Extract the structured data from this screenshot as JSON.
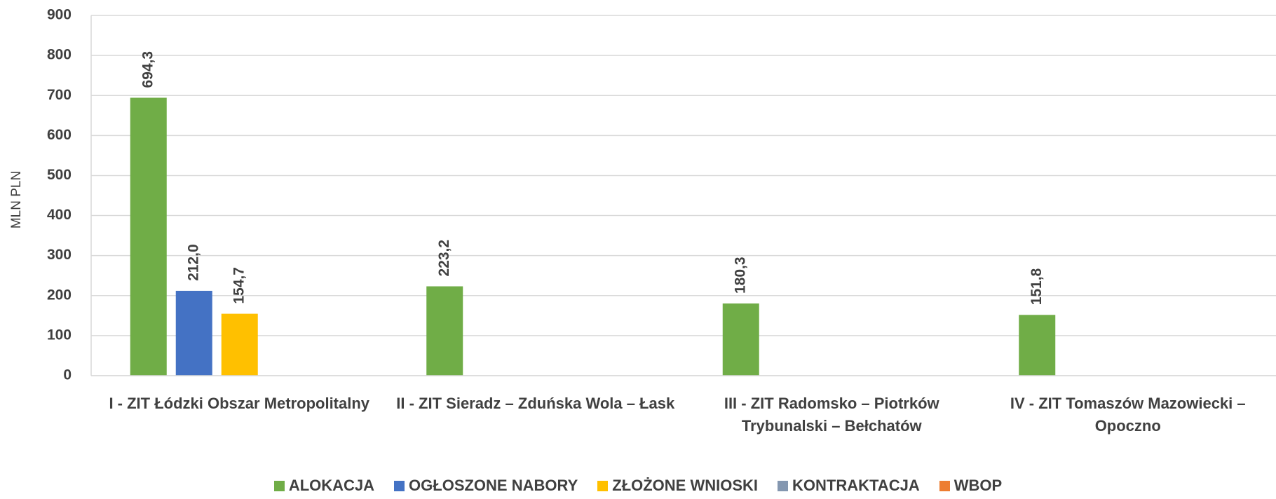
{
  "chart_data": {
    "type": "bar",
    "y_label": "MLN PLN",
    "categories": [
      "I - ZIT Łódzki Obszar Metropolitalny",
      "II - ZIT Sieradz – Zduńska Wola – Łask",
      "III - ZIT Radomsko – Piotrków Trybunalski – Bełchatów",
      "IV - ZIT Tomaszów Mazowiecki – Opoczno"
    ],
    "series": [
      {
        "name": "ALOKACJA",
        "color": "#70ad47",
        "values": [
          694.3,
          223.2,
          180.3,
          151.8
        ],
        "value_labels": [
          "694,3",
          "223,2",
          "180,3",
          "151,8"
        ]
      },
      {
        "name": "OGŁOSZONE NABORY",
        "color": "#4472c4",
        "values": [
          212.0,
          0,
          0,
          0
        ],
        "value_labels": [
          "212,0",
          null,
          null,
          null
        ]
      },
      {
        "name": "ZŁOŻONE WNIOSKI",
        "color": "#ffc000",
        "values": [
          154.7,
          0,
          0,
          0
        ],
        "value_labels": [
          "154,7",
          null,
          null,
          null
        ]
      },
      {
        "name": "KONTRAKTACJA",
        "color": "#8497b0",
        "values": [
          0,
          0,
          0,
          0
        ],
        "value_labels": [
          null,
          null,
          null,
          null
        ]
      },
      {
        "name": "WBOP",
        "color": "#ed7d31",
        "values": [
          0,
          0,
          0,
          0
        ],
        "value_labels": [
          null,
          null,
          null,
          null
        ]
      }
    ],
    "ylim": [
      0,
      900
    ],
    "yticks": [
      0,
      100,
      200,
      300,
      400,
      500,
      600,
      700,
      800,
      900
    ],
    "grid": true
  }
}
